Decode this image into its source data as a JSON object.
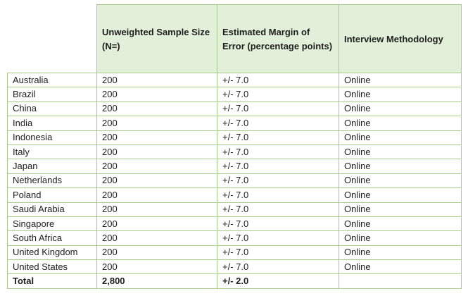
{
  "table": {
    "headers": [
      "",
      "Unweighted Sample Size (N=)",
      "Estimated Margin of Error (percentage points)",
      "Interview Methodology"
    ],
    "rows": [
      [
        "Australia",
        "200",
        "+/- 7.0",
        "Online"
      ],
      [
        "Brazil",
        "200",
        "+/- 7.0",
        "Online"
      ],
      [
        "China",
        "200",
        "+/- 7.0",
        "Online"
      ],
      [
        "India",
        "200",
        "+/- 7.0",
        "Online"
      ],
      [
        "Indonesia",
        "200",
        "+/- 7.0",
        "Online"
      ],
      [
        "Italy",
        "200",
        "+/- 7.0",
        "Online"
      ],
      [
        "Japan",
        "200",
        "+/- 7.0",
        "Online"
      ],
      [
        "Netherlands",
        "200",
        "+/- 7.0",
        "Online"
      ],
      [
        "Poland",
        "200",
        "+/- 7.0",
        "Online"
      ],
      [
        "Saudi Arabia",
        "200",
        "+/- 7.0",
        "Online"
      ],
      [
        "Singapore",
        "200",
        "+/- 7.0",
        "Online"
      ],
      [
        "South Africa",
        "200",
        "+/- 7.0",
        "Online"
      ],
      [
        "United Kingdom",
        "200",
        "+/- 7.0",
        "Online"
      ],
      [
        "United States",
        "200",
        "+/- 7.0",
        "Online"
      ]
    ],
    "total": [
      "Total",
      "2,800",
      "+/- 2.0",
      ""
    ]
  },
  "colors": {
    "header_fill": "#e2efd9",
    "border": "#a7cc8c"
  }
}
